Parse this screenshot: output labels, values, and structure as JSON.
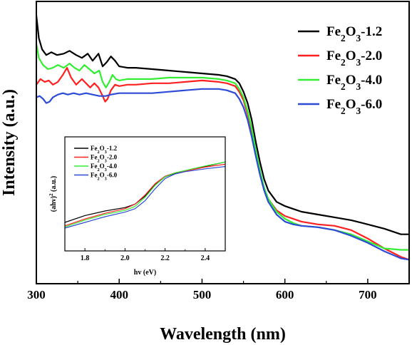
{
  "chart_data": [
    {
      "type": "line",
      "xlabel": "Wavelength (nm)",
      "ylabel": "Intensity (a.u.)",
      "xlim": [
        300,
        750
      ],
      "ylim": [
        0,
        1
      ],
      "x_ticks": [
        300,
        400,
        500,
        600,
        700
      ],
      "y_ticks_shown": false,
      "legend_position": "top-right",
      "series": [
        {
          "name": "Fe2O3-1.2",
          "label_parts": [
            "Fe",
            "2",
            "O",
            "3",
            "-1.2"
          ],
          "color": "#000000",
          "points": [
            [
              300,
              0.95
            ],
            [
              303,
              0.87
            ],
            [
              307,
              0.83
            ],
            [
              312,
              0.81
            ],
            [
              318,
              0.82
            ],
            [
              325,
              0.81
            ],
            [
              333,
              0.815
            ],
            [
              340,
              0.825
            ],
            [
              348,
              0.81
            ],
            [
              355,
              0.8
            ],
            [
              362,
              0.815
            ],
            [
              368,
              0.79
            ],
            [
              375,
              0.815
            ],
            [
              380,
              0.77
            ],
            [
              385,
              0.785
            ],
            [
              390,
              0.805
            ],
            [
              395,
              0.79
            ],
            [
              400,
              0.77
            ],
            [
              410,
              0.765
            ],
            [
              420,
              0.765
            ],
            [
              440,
              0.76
            ],
            [
              460,
              0.755
            ],
            [
              480,
              0.75
            ],
            [
              500,
              0.745
            ],
            [
              520,
              0.74
            ],
            [
              530,
              0.735
            ],
            [
              540,
              0.725
            ],
            [
              545,
              0.71
            ],
            [
              550,
              0.68
            ],
            [
              555,
              0.64
            ],
            [
              560,
              0.58
            ],
            [
              565,
              0.5
            ],
            [
              570,
              0.43
            ],
            [
              575,
              0.37
            ],
            [
              580,
              0.33
            ],
            [
              590,
              0.29
            ],
            [
              600,
              0.275
            ],
            [
              610,
              0.265
            ],
            [
              620,
              0.255
            ],
            [
              640,
              0.245
            ],
            [
              660,
              0.235
            ],
            [
              680,
              0.225
            ],
            [
              700,
              0.21
            ],
            [
              720,
              0.195
            ],
            [
              740,
              0.175
            ],
            [
              750,
              0.175
            ]
          ]
        },
        {
          "name": "Fe2O3-2.0",
          "label_parts": [
            "Fe",
            "2",
            "O",
            "3",
            "-2.0"
          ],
          "color": "#ff2020",
          "points": [
            [
              300,
              0.705
            ],
            [
              305,
              0.725
            ],
            [
              310,
              0.715
            ],
            [
              315,
              0.72
            ],
            [
              320,
              0.705
            ],
            [
              326,
              0.715
            ],
            [
              332,
              0.74
            ],
            [
              337,
              0.765
            ],
            [
              342,
              0.73
            ],
            [
              348,
              0.705
            ],
            [
              355,
              0.725
            ],
            [
              360,
              0.71
            ],
            [
              365,
              0.695
            ],
            [
              370,
              0.71
            ],
            [
              375,
              0.695
            ],
            [
              380,
              0.665
            ],
            [
              383,
              0.645
            ],
            [
              386,
              0.655
            ],
            [
              390,
              0.685
            ],
            [
              395,
              0.705
            ],
            [
              400,
              0.7
            ],
            [
              410,
              0.705
            ],
            [
              420,
              0.705
            ],
            [
              440,
              0.71
            ],
            [
              460,
              0.71
            ],
            [
              480,
              0.715
            ],
            [
              500,
              0.72
            ],
            [
              520,
              0.715
            ],
            [
              530,
              0.71
            ],
            [
              540,
              0.7
            ],
            [
              545,
              0.68
            ],
            [
              550,
              0.65
            ],
            [
              555,
              0.6
            ],
            [
              560,
              0.54
            ],
            [
              565,
              0.46
            ],
            [
              570,
              0.39
            ],
            [
              575,
              0.335
            ],
            [
              580,
              0.3
            ],
            [
              590,
              0.26
            ],
            [
              600,
              0.24
            ],
            [
              610,
              0.23
            ],
            [
              620,
              0.22
            ],
            [
              640,
              0.21
            ],
            [
              660,
              0.205
            ],
            [
              680,
              0.19
            ],
            [
              700,
              0.16
            ],
            [
              720,
              0.125
            ],
            [
              740,
              0.095
            ],
            [
              750,
              0.085
            ]
          ]
        },
        {
          "name": "Fe2O3-4.0",
          "label_parts": [
            "Fe",
            "2",
            "O",
            "3",
            "-4.0"
          ],
          "color": "#33ee33",
          "points": [
            [
              300,
              0.85
            ],
            [
              303,
              0.8
            ],
            [
              308,
              0.775
            ],
            [
              314,
              0.76
            ],
            [
              320,
              0.765
            ],
            [
              326,
              0.775
            ],
            [
              333,
              0.765
            ],
            [
              340,
              0.78
            ],
            [
              346,
              0.765
            ],
            [
              352,
              0.755
            ],
            [
              358,
              0.775
            ],
            [
              364,
              0.76
            ],
            [
              370,
              0.745
            ],
            [
              376,
              0.755
            ],
            [
              380,
              0.715
            ],
            [
              384,
              0.695
            ],
            [
              388,
              0.715
            ],
            [
              392,
              0.74
            ],
            [
              396,
              0.725
            ],
            [
              400,
              0.72
            ],
            [
              410,
              0.725
            ],
            [
              420,
              0.725
            ],
            [
              440,
              0.725
            ],
            [
              460,
              0.73
            ],
            [
              480,
              0.73
            ],
            [
              500,
              0.73
            ],
            [
              520,
              0.725
            ],
            [
              530,
              0.72
            ],
            [
              540,
              0.71
            ],
            [
              545,
              0.69
            ],
            [
              550,
              0.66
            ],
            [
              555,
              0.61
            ],
            [
              560,
              0.55
            ],
            [
              565,
              0.47
            ],
            [
              570,
              0.4
            ],
            [
              575,
              0.34
            ],
            [
              580,
              0.3
            ],
            [
              590,
              0.255
            ],
            [
              600,
              0.23
            ],
            [
              610,
              0.215
            ],
            [
              620,
              0.205
            ],
            [
              640,
              0.2
            ],
            [
              660,
              0.19
            ],
            [
              680,
              0.175
            ],
            [
              700,
              0.15
            ],
            [
              720,
              0.125
            ],
            [
              740,
              0.12
            ],
            [
              750,
              0.12
            ]
          ]
        },
        {
          "name": "Fe2O3-6.0",
          "label_parts": [
            "Fe",
            "2",
            "O",
            "3",
            "-6.0"
          ],
          "color": "#2d4bd6",
          "points": [
            [
              300,
              0.66
            ],
            [
              304,
              0.665
            ],
            [
              308,
              0.655
            ],
            [
              312,
              0.64
            ],
            [
              316,
              0.645
            ],
            [
              320,
              0.66
            ],
            [
              326,
              0.67
            ],
            [
              332,
              0.675
            ],
            [
              338,
              0.67
            ],
            [
              345,
              0.675
            ],
            [
              352,
              0.67
            ],
            [
              360,
              0.675
            ],
            [
              368,
              0.67
            ],
            [
              376,
              0.665
            ],
            [
              384,
              0.665
            ],
            [
              390,
              0.67
            ],
            [
              400,
              0.675
            ],
            [
              420,
              0.675
            ],
            [
              440,
              0.675
            ],
            [
              460,
              0.68
            ],
            [
              480,
              0.685
            ],
            [
              500,
              0.69
            ],
            [
              520,
              0.69
            ],
            [
              530,
              0.685
            ],
            [
              540,
              0.675
            ],
            [
              545,
              0.655
            ],
            [
              550,
              0.625
            ],
            [
              555,
              0.58
            ],
            [
              560,
              0.52
            ],
            [
              565,
              0.45
            ],
            [
              570,
              0.385
            ],
            [
              575,
              0.33
            ],
            [
              580,
              0.29
            ],
            [
              590,
              0.245
            ],
            [
              600,
              0.22
            ],
            [
              610,
              0.21
            ],
            [
              620,
              0.205
            ],
            [
              640,
              0.2
            ],
            [
              660,
              0.19
            ],
            [
              680,
              0.17
            ],
            [
              700,
              0.145
            ],
            [
              720,
              0.115
            ],
            [
              740,
              0.09
            ],
            [
              750,
              0.085
            ]
          ]
        }
      ]
    },
    {
      "type": "line",
      "inset": true,
      "xlabel": "hv (eV)",
      "ylabel_parts": [
        "(ahv)",
        "2",
        " (a.u.)"
      ],
      "xlim": [
        1.7,
        2.5
      ],
      "ylim": [
        0,
        1
      ],
      "x_ticks": [
        1.8,
        2.0,
        2.2,
        2.4
      ],
      "x_tick_labels": [
        "1.8",
        "2.0",
        "2.2",
        "2.4"
      ],
      "legend_position": "top-left",
      "series": [
        {
          "name": "Fe2O3-1.2",
          "label_parts": [
            "Fe",
            "2",
            "O",
            "3",
            "-1.2"
          ],
          "color": "#000000",
          "points": [
            [
              1.7,
              0.25
            ],
            [
              1.8,
              0.31
            ],
            [
              1.9,
              0.35
            ],
            [
              2.0,
              0.38
            ],
            [
              2.05,
              0.41
            ],
            [
              2.1,
              0.48
            ],
            [
              2.15,
              0.58
            ],
            [
              2.2,
              0.65
            ],
            [
              2.25,
              0.68
            ],
            [
              2.3,
              0.7
            ],
            [
              2.4,
              0.74
            ],
            [
              2.5,
              0.78
            ]
          ]
        },
        {
          "name": "Fe2O3-2.0",
          "label_parts": [
            "Fe",
            "2",
            "O",
            "3",
            "-2.0"
          ],
          "color": "#ff2020",
          "points": [
            [
              1.7,
              0.22
            ],
            [
              1.8,
              0.28
            ],
            [
              1.9,
              0.33
            ],
            [
              2.0,
              0.37
            ],
            [
              2.05,
              0.41
            ],
            [
              2.1,
              0.49
            ],
            [
              2.15,
              0.59
            ],
            [
              2.2,
              0.655
            ],
            [
              2.25,
              0.685
            ],
            [
              2.3,
              0.7
            ],
            [
              2.4,
              0.735
            ],
            [
              2.5,
              0.76
            ]
          ]
        },
        {
          "name": "Fe2O3-4.0",
          "label_parts": [
            "Fe",
            "2",
            "O",
            "3",
            "-4.0"
          ],
          "color": "#33ee33",
          "points": [
            [
              1.7,
              0.21
            ],
            [
              1.8,
              0.27
            ],
            [
              1.9,
              0.32
            ],
            [
              2.0,
              0.355
            ],
            [
              2.05,
              0.39
            ],
            [
              2.1,
              0.47
            ],
            [
              2.15,
              0.575
            ],
            [
              2.2,
              0.65
            ],
            [
              2.25,
              0.685
            ],
            [
              2.3,
              0.705
            ],
            [
              2.4,
              0.745
            ],
            [
              2.5,
              0.78
            ]
          ]
        },
        {
          "name": "Fe2O3-6.0",
          "label_parts": [
            "Fe",
            "2",
            "O",
            "3",
            "-6.0"
          ],
          "color": "#2d4bd6",
          "points": [
            [
              1.7,
              0.2
            ],
            [
              1.8,
              0.25
            ],
            [
              1.9,
              0.3
            ],
            [
              2.0,
              0.34
            ],
            [
              2.05,
              0.37
            ],
            [
              2.1,
              0.44
            ],
            [
              2.15,
              0.545
            ],
            [
              2.2,
              0.635
            ],
            [
              2.25,
              0.675
            ],
            [
              2.3,
              0.695
            ],
            [
              2.4,
              0.72
            ],
            [
              2.5,
              0.74
            ]
          ]
        }
      ]
    }
  ]
}
